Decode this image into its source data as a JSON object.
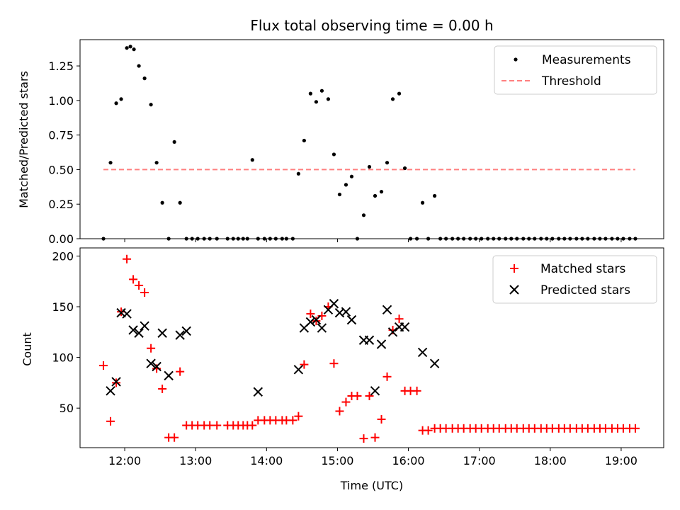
{
  "figure": {
    "title": "Flux total observing time = 0.00 h",
    "xlabel": "Time (UTC)",
    "x_tick_labels": [
      "12:00",
      "13:00",
      "14:00",
      "15:00",
      "16:00",
      "17:00",
      "18:00",
      "19:00"
    ]
  },
  "chart_data": [
    {
      "type": "scatter",
      "ylabel": "Matched/Predicted stars",
      "xlim_hours": [
        11.37,
        19.6
      ],
      "ylim": [
        0,
        1.44
      ],
      "y_ticks": [
        0.0,
        0.25,
        0.5,
        0.75,
        1.0,
        1.25
      ],
      "y_tick_labels": [
        "0.00",
        "0.25",
        "0.50",
        "0.75",
        "1.00",
        "1.25"
      ],
      "legend_position": "top-right",
      "grid": false,
      "series": [
        {
          "name": "Measurements",
          "color": "#000000",
          "marker": "dot",
          "x": [
            11.7,
            11.8,
            11.88,
            11.95,
            12.03,
            12.08,
            12.13,
            12.2,
            12.28,
            12.37,
            12.45,
            12.53,
            12.62,
            12.7,
            12.78,
            12.87,
            12.95,
            13.03,
            13.12,
            13.2,
            13.3,
            13.45,
            13.53,
            13.6,
            13.67,
            13.73,
            13.8,
            13.88,
            13.97,
            14.05,
            14.13,
            14.22,
            14.28,
            14.37,
            14.45,
            14.53,
            14.62,
            14.7,
            14.78,
            14.87,
            14.95,
            15.03,
            15.12,
            15.2,
            15.28,
            15.37,
            15.45,
            15.53,
            15.62,
            15.7,
            15.78,
            15.87,
            15.95,
            16.03,
            16.12,
            16.2,
            16.28,
            16.37,
            16.45,
            16.53,
            16.62,
            16.7,
            16.78,
            16.87,
            16.95,
            17.03,
            17.12,
            17.2,
            17.28,
            17.37,
            17.45,
            17.53,
            17.62,
            17.7,
            17.78,
            17.87,
            17.95,
            18.03,
            18.12,
            18.2,
            18.28,
            18.37,
            18.45,
            18.53,
            18.62,
            18.7,
            18.78,
            18.87,
            18.95,
            19.03,
            19.12,
            19.2
          ],
          "y": [
            0.0,
            0.55,
            0.98,
            1.01,
            1.38,
            1.39,
            1.37,
            1.25,
            1.16,
            0.97,
            0.55,
            0.26,
            0.0,
            0.7,
            0.26,
            0.0,
            0.0,
            0.0,
            0.0,
            0.0,
            0.0,
            0.0,
            0.0,
            0.0,
            0.0,
            0.0,
            0.57,
            0.0,
            0.0,
            0.0,
            0.0,
            0.0,
            0.0,
            0.0,
            0.47,
            0.71,
            1.05,
            0.99,
            1.07,
            1.01,
            0.61,
            0.32,
            0.39,
            0.45,
            0.0,
            0.17,
            0.52,
            0.31,
            0.34,
            0.55,
            1.01,
            1.05,
            0.51,
            0.0,
            0.0,
            0.26,
            0.0,
            0.31,
            0.0,
            0.0,
            0.0,
            0.0,
            0.0,
            0.0,
            0.0,
            0.0,
            0.0,
            0.0,
            0.0,
            0.0,
            0.0,
            0.0,
            0.0,
            0.0,
            0.0,
            0.0,
            0.0,
            0.0,
            0.0,
            0.0,
            0.0,
            0.0,
            0.0,
            0.0,
            0.0,
            0.0,
            0.0,
            0.0,
            0.0,
            0.0,
            0.0,
            0.0
          ]
        },
        {
          "name": "Threshold",
          "color": "#ff7f7f",
          "style": "dashed-line",
          "x": [
            11.7,
            19.2
          ],
          "y": [
            0.5,
            0.5
          ]
        }
      ]
    },
    {
      "type": "scatter",
      "ylabel": "Count",
      "xlim_hours": [
        11.37,
        19.6
      ],
      "ylim": [
        11,
        208
      ],
      "y_ticks": [
        50,
        100,
        150,
        200
      ],
      "y_tick_labels": [
        "50",
        "100",
        "150",
        "200"
      ],
      "legend_position": "top-right",
      "grid": false,
      "series": [
        {
          "name": "Matched stars",
          "color": "#ff0000",
          "marker": "plus",
          "x": [
            11.7,
            11.8,
            11.88,
            11.95,
            12.03,
            12.12,
            12.2,
            12.28,
            12.37,
            12.45,
            12.53,
            12.62,
            12.7,
            12.78,
            12.87,
            12.95,
            13.03,
            13.12,
            13.2,
            13.3,
            13.45,
            13.53,
            13.6,
            13.67,
            13.73,
            13.8,
            13.88,
            13.97,
            14.05,
            14.13,
            14.22,
            14.28,
            14.37,
            14.45,
            14.53,
            14.62,
            14.7,
            14.78,
            14.87,
            14.95,
            15.03,
            15.12,
            15.2,
            15.28,
            15.37,
            15.45,
            15.53,
            15.62,
            15.7,
            15.78,
            15.87,
            15.95,
            16.03,
            16.12,
            16.2,
            16.28,
            16.37,
            16.45,
            16.53,
            16.62,
            16.7,
            16.78,
            16.87,
            16.95,
            17.03,
            17.12,
            17.2,
            17.28,
            17.37,
            17.45,
            17.53,
            17.62,
            17.7,
            17.78,
            17.87,
            17.95,
            18.03,
            18.12,
            18.2,
            18.28,
            18.37,
            18.45,
            18.53,
            18.62,
            18.7,
            18.78,
            18.87,
            18.95,
            19.03,
            19.12,
            19.2
          ],
          "y": [
            92,
            37,
            75,
            145,
            197,
            177,
            171,
            164,
            109,
            89,
            69,
            21,
            21,
            86,
            33,
            33,
            33,
            33,
            33,
            33,
            33,
            33,
            33,
            33,
            33,
            33,
            38,
            38,
            38,
            38,
            38,
            38,
            38,
            42,
            93,
            143,
            136,
            141,
            150,
            94,
            47,
            56,
            62,
            62,
            20,
            62,
            21,
            39,
            81,
            127,
            138,
            67,
            67,
            67,
            28,
            28,
            30,
            30,
            30,
            30,
            30,
            30,
            30,
            30,
            30,
            30,
            30,
            30,
            30,
            30,
            30,
            30,
            30,
            30,
            30,
            30,
            30,
            30,
            30,
            30,
            30,
            30,
            30,
            30,
            30,
            30,
            30,
            30,
            30,
            30,
            30
          ]
        },
        {
          "name": "Predicted stars",
          "color": "#000000",
          "marker": "cross",
          "x": [
            11.8,
            11.88,
            11.95,
            12.03,
            12.12,
            12.2,
            12.28,
            12.37,
            12.45,
            12.53,
            12.62,
            12.78,
            12.87,
            13.88,
            14.45,
            14.53,
            14.62,
            14.7,
            14.78,
            14.87,
            14.95,
            15.03,
            15.12,
            15.2,
            15.37,
            15.45,
            15.53,
            15.62,
            15.7,
            15.78,
            15.87,
            15.95,
            16.2,
            16.37
          ],
          "y": [
            67,
            76,
            144,
            143,
            127,
            124,
            131,
            94,
            91,
            124,
            82,
            122,
            126,
            66,
            88,
            129,
            135,
            137,
            129,
            147,
            153,
            144,
            145,
            137,
            117,
            117,
            67,
            113,
            147,
            125,
            130,
            130,
            105,
            94
          ]
        }
      ]
    }
  ]
}
